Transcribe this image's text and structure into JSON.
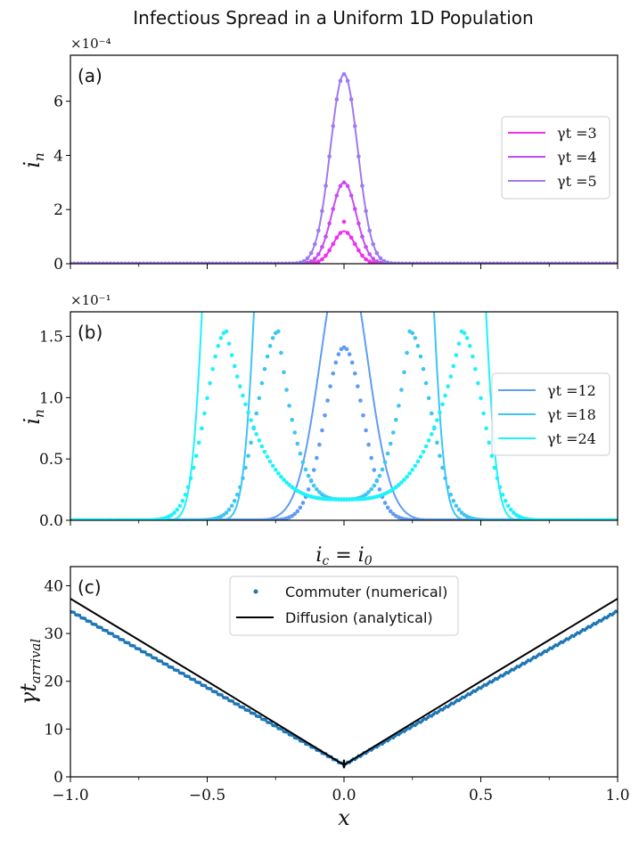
{
  "title": "Infectious Spread in a Uniform 1D Population",
  "chart_data": [
    {
      "panel": "(a)",
      "type": "line",
      "ylabel": "i_n",
      "multiplier": "×10⁻⁴",
      "ylim": [
        0,
        7.7
      ],
      "yticks": [
        "0",
        "2",
        "4",
        "6"
      ],
      "ytick_values": [
        0,
        2,
        4,
        6
      ],
      "xlim": [
        -1,
        1
      ],
      "legend_position": "center-right",
      "series": [
        {
          "name": "γt =3",
          "color": "#ef2ef0",
          "peak": 1.2,
          "sigma": 0.04,
          "dot_peak": 1.55
        },
        {
          "name": "γt =4",
          "color": "#c94cf0",
          "peak": 3.0,
          "sigma": 0.045,
          "dot_peak": 3.0
        },
        {
          "name": "γt =5",
          "color": "#9d7af0",
          "peak": 7.0,
          "sigma": 0.05,
          "dot_peak": 7.0
        }
      ]
    },
    {
      "panel": "(b)",
      "type": "line",
      "ylabel": "i_n",
      "multiplier": "×10⁻¹",
      "ylim": [
        0,
        1.7
      ],
      "yticks": [
        "0.0",
        "0.5",
        "1.0",
        "1.5"
      ],
      "ytick_values": [
        0,
        0.5,
        1.0,
        1.5
      ],
      "xlim": [
        -1,
        1
      ],
      "legend_position": "center-right",
      "series": [
        {
          "name": "γt =12",
          "color": "#5f9cf4",
          "front": 0.0,
          "dot_peak": 1.41
        },
        {
          "name": "γt =18",
          "color": "#3dc5f4",
          "front": 0.24,
          "dot_peak": 1.54
        },
        {
          "name": "γt =24",
          "color": "#1ef2f8",
          "front": 0.43,
          "dot_peak": 1.54
        }
      ]
    },
    {
      "panel": "(c)",
      "type": "scatter",
      "title": "i_c = i_0",
      "xlabel": "x",
      "ylabel": "γt_arrival",
      "xlim": [
        -1,
        1
      ],
      "ylim": [
        0,
        44
      ],
      "xticks": [
        "−1.0",
        "−0.5",
        "0.0",
        "0.5",
        "1.0"
      ],
      "xtick_values": [
        -1,
        -0.5,
        0,
        0.5,
        1
      ],
      "yticks": [
        "0",
        "10",
        "20",
        "30",
        "40"
      ],
      "ytick_values": [
        0,
        10,
        20,
        30,
        40
      ],
      "legend_position": "top-center",
      "series": [
        {
          "name": "Commuter (numerical)",
          "color": "#1f77b4",
          "type": "scatter",
          "x": [
            -1.0,
            -0.5,
            0.0,
            0.5,
            1.0
          ],
          "y": [
            34.7,
            18.7,
            2.5,
            18.7,
            34.7
          ]
        },
        {
          "name": "Diffusion (analytical)",
          "color": "#000000",
          "type": "line",
          "x": [
            -1.0,
            -0.5,
            0.0,
            0.5,
            1.0
          ],
          "y": [
            37.3,
            20.0,
            2.5,
            20.0,
            37.3
          ]
        }
      ]
    }
  ]
}
